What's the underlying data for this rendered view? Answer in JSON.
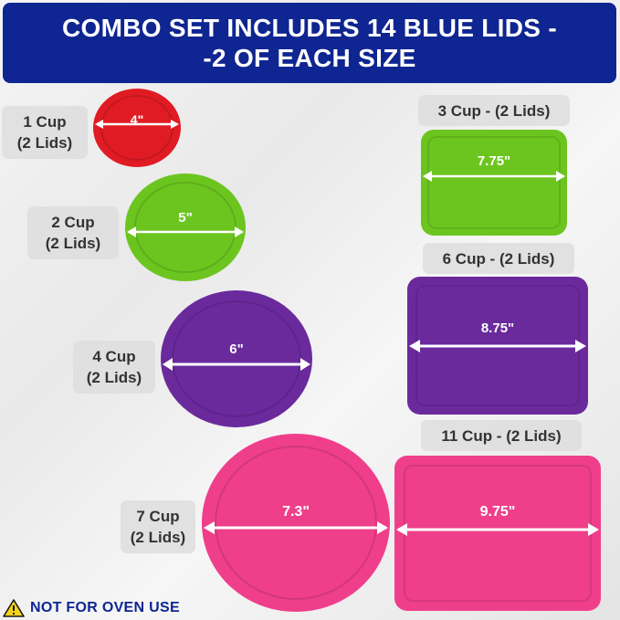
{
  "header": {
    "line1": "COMBO SET INCLUDES 14 BLUE LIDS -",
    "line2": "-2 OF EACH SIZE"
  },
  "lids": [
    {
      "shape": "round",
      "color": "#e01b24",
      "size": "4\"",
      "label_l1": "1 Cup",
      "label_l2": "(2 Lids)"
    },
    {
      "shape": "round",
      "color": "#6cc51f",
      "size": "5\"",
      "label_l1": "2 Cup",
      "label_l2": "(2 Lids)"
    },
    {
      "shape": "round",
      "color": "#6a2a9c",
      "size": "6\"",
      "label_l1": "4 Cup",
      "label_l2": "(2 Lids)"
    },
    {
      "shape": "round",
      "color": "#ef3f8a",
      "size": "7.3\"",
      "label_l1": "7 Cup",
      "label_l2": "(2 Lids)"
    },
    {
      "shape": "rectangle",
      "color": "#6cc51f",
      "size": "7.75\"",
      "label": "3 Cup - (2 Lids)"
    },
    {
      "shape": "rectangle",
      "color": "#6a2a9c",
      "size": "8.75\"",
      "label": "6 Cup - (2 Lids)"
    },
    {
      "shape": "rectangle",
      "color": "#ef3f8a",
      "size": "9.75\"",
      "label": "11 Cup - (2 Lids)"
    }
  ],
  "warning": {
    "text": "NOT FOR OVEN USE",
    "icon": "warning-triangle-icon",
    "color": "#0f2591"
  }
}
